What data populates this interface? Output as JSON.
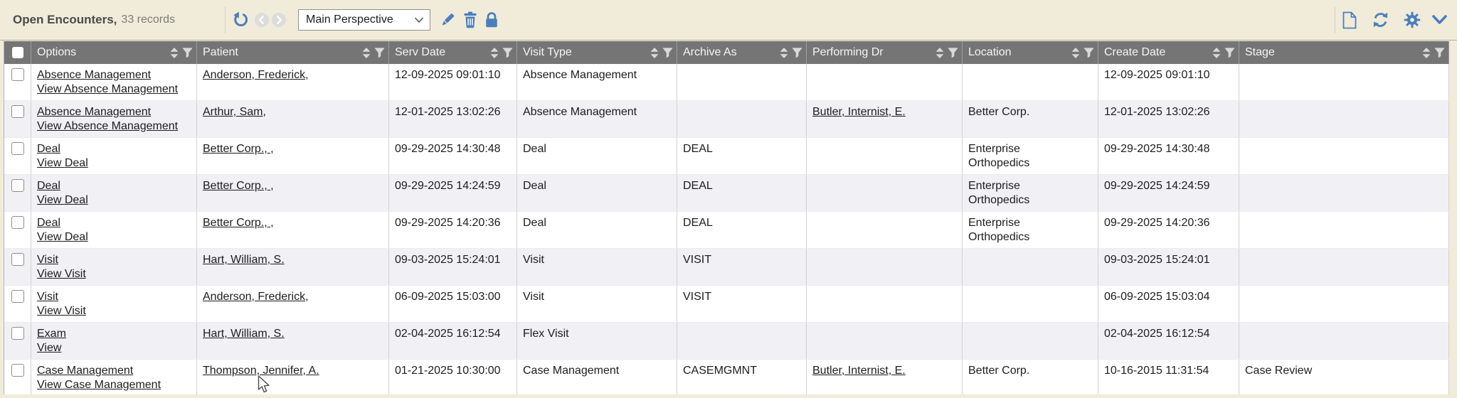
{
  "header_bar": {
    "title": "Open Encounters,",
    "record_count": "33 records",
    "perspective_selector": {
      "value": "Main Perspective"
    },
    "left_icons": [
      "undo-icon",
      "nav-back-icon",
      "nav-forward-icon",
      "edit-pencil-icon",
      "delete-trash-icon",
      "lock-icon"
    ],
    "right_icons": [
      "new-document-icon",
      "refresh-icon",
      "settings-gear-icon",
      "collapse-chevron-icon"
    ]
  },
  "table": {
    "columns": [
      {
        "key": "options",
        "label": "Options"
      },
      {
        "key": "patient",
        "label": "Patient"
      },
      {
        "key": "serv_date",
        "label": "Serv Date"
      },
      {
        "key": "visit_type",
        "label": "Visit Type"
      },
      {
        "key": "archive_as",
        "label": "Archive As"
      },
      {
        "key": "performing_dr",
        "label": "Performing Dr"
      },
      {
        "key": "location",
        "label": "Location"
      },
      {
        "key": "create_date",
        "label": "Create Date"
      },
      {
        "key": "stage",
        "label": "Stage"
      }
    ],
    "rows": [
      {
        "options": [
          "Absence Management",
          "View Absence Management"
        ],
        "patient": "Anderson, Frederick,",
        "serv_date": "12-09-2025 09:01:10",
        "visit_type": "Absence Management",
        "archive_as": "",
        "performing_dr": "",
        "location": "",
        "create_date": "12-09-2025 09:01:10",
        "stage": ""
      },
      {
        "options": [
          "Absence Management",
          "View Absence Management"
        ],
        "patient": "Arthur, Sam,",
        "serv_date": "12-01-2025 13:02:26",
        "visit_type": "Absence Management",
        "archive_as": "",
        "performing_dr": "Butler, Internist, E.",
        "location": "Better Corp.",
        "create_date": "12-01-2025 13:02:26",
        "stage": ""
      },
      {
        "options": [
          "Deal",
          "View Deal"
        ],
        "patient": "Better Corp., ,",
        "serv_date": "09-29-2025 14:30:48",
        "visit_type": "Deal",
        "archive_as": "DEAL",
        "performing_dr": "",
        "location": "Enterprise Orthopedics",
        "create_date": "09-29-2025 14:30:48",
        "stage": ""
      },
      {
        "options": [
          "Deal",
          "View Deal"
        ],
        "patient": "Better Corp., ,",
        "serv_date": "09-29-2025 14:24:59",
        "visit_type": "Deal",
        "archive_as": "DEAL",
        "performing_dr": "",
        "location": "Enterprise Orthopedics",
        "create_date": "09-29-2025 14:24:59",
        "stage": ""
      },
      {
        "options": [
          "Deal",
          "View Deal"
        ],
        "patient": "Better Corp., ,",
        "serv_date": "09-29-2025 14:20:36",
        "visit_type": "Deal",
        "archive_as": "DEAL",
        "performing_dr": "",
        "location": "Enterprise Orthopedics",
        "create_date": "09-29-2025 14:20:36",
        "stage": ""
      },
      {
        "options": [
          "Visit",
          "View Visit"
        ],
        "patient": "Hart, William, S.",
        "serv_date": "09-03-2025 15:24:01",
        "visit_type": "Visit",
        "archive_as": "VISIT",
        "performing_dr": "",
        "location": "",
        "create_date": "09-03-2025 15:24:01",
        "stage": ""
      },
      {
        "options": [
          "Visit",
          "View Visit"
        ],
        "patient": "Anderson, Frederick,",
        "serv_date": "06-09-2025 15:03:00",
        "visit_type": "Visit",
        "archive_as": "VISIT",
        "performing_dr": "",
        "location": "",
        "create_date": "06-09-2025 15:03:04",
        "stage": ""
      },
      {
        "options": [
          "Exam",
          "View"
        ],
        "patient": "Hart, William, S.",
        "serv_date": "02-04-2025 16:12:54",
        "visit_type": "Flex Visit",
        "archive_as": "",
        "performing_dr": "",
        "location": "",
        "create_date": "02-04-2025 16:12:54",
        "stage": ""
      },
      {
        "options": [
          "Case Management",
          "View Case Management"
        ],
        "patient": "Thompson, Jennifer, A.",
        "serv_date": "01-21-2025 10:30:00",
        "visit_type": "Case Management",
        "archive_as": "CASEMGMNT",
        "performing_dr": "Butler, Internist, E.",
        "location": "Better Corp.",
        "create_date": "10-16-2015 11:31:54",
        "stage": "Case Review"
      }
    ]
  },
  "colors": {
    "toolbar_bg": "#f1ecd9",
    "header_bg": "#757575",
    "header_text": "#f5f5f5",
    "alt_row_bg": "#f0f0f5",
    "accent_blue": "#4a7fbe",
    "link_text": "#1d1d1d"
  }
}
